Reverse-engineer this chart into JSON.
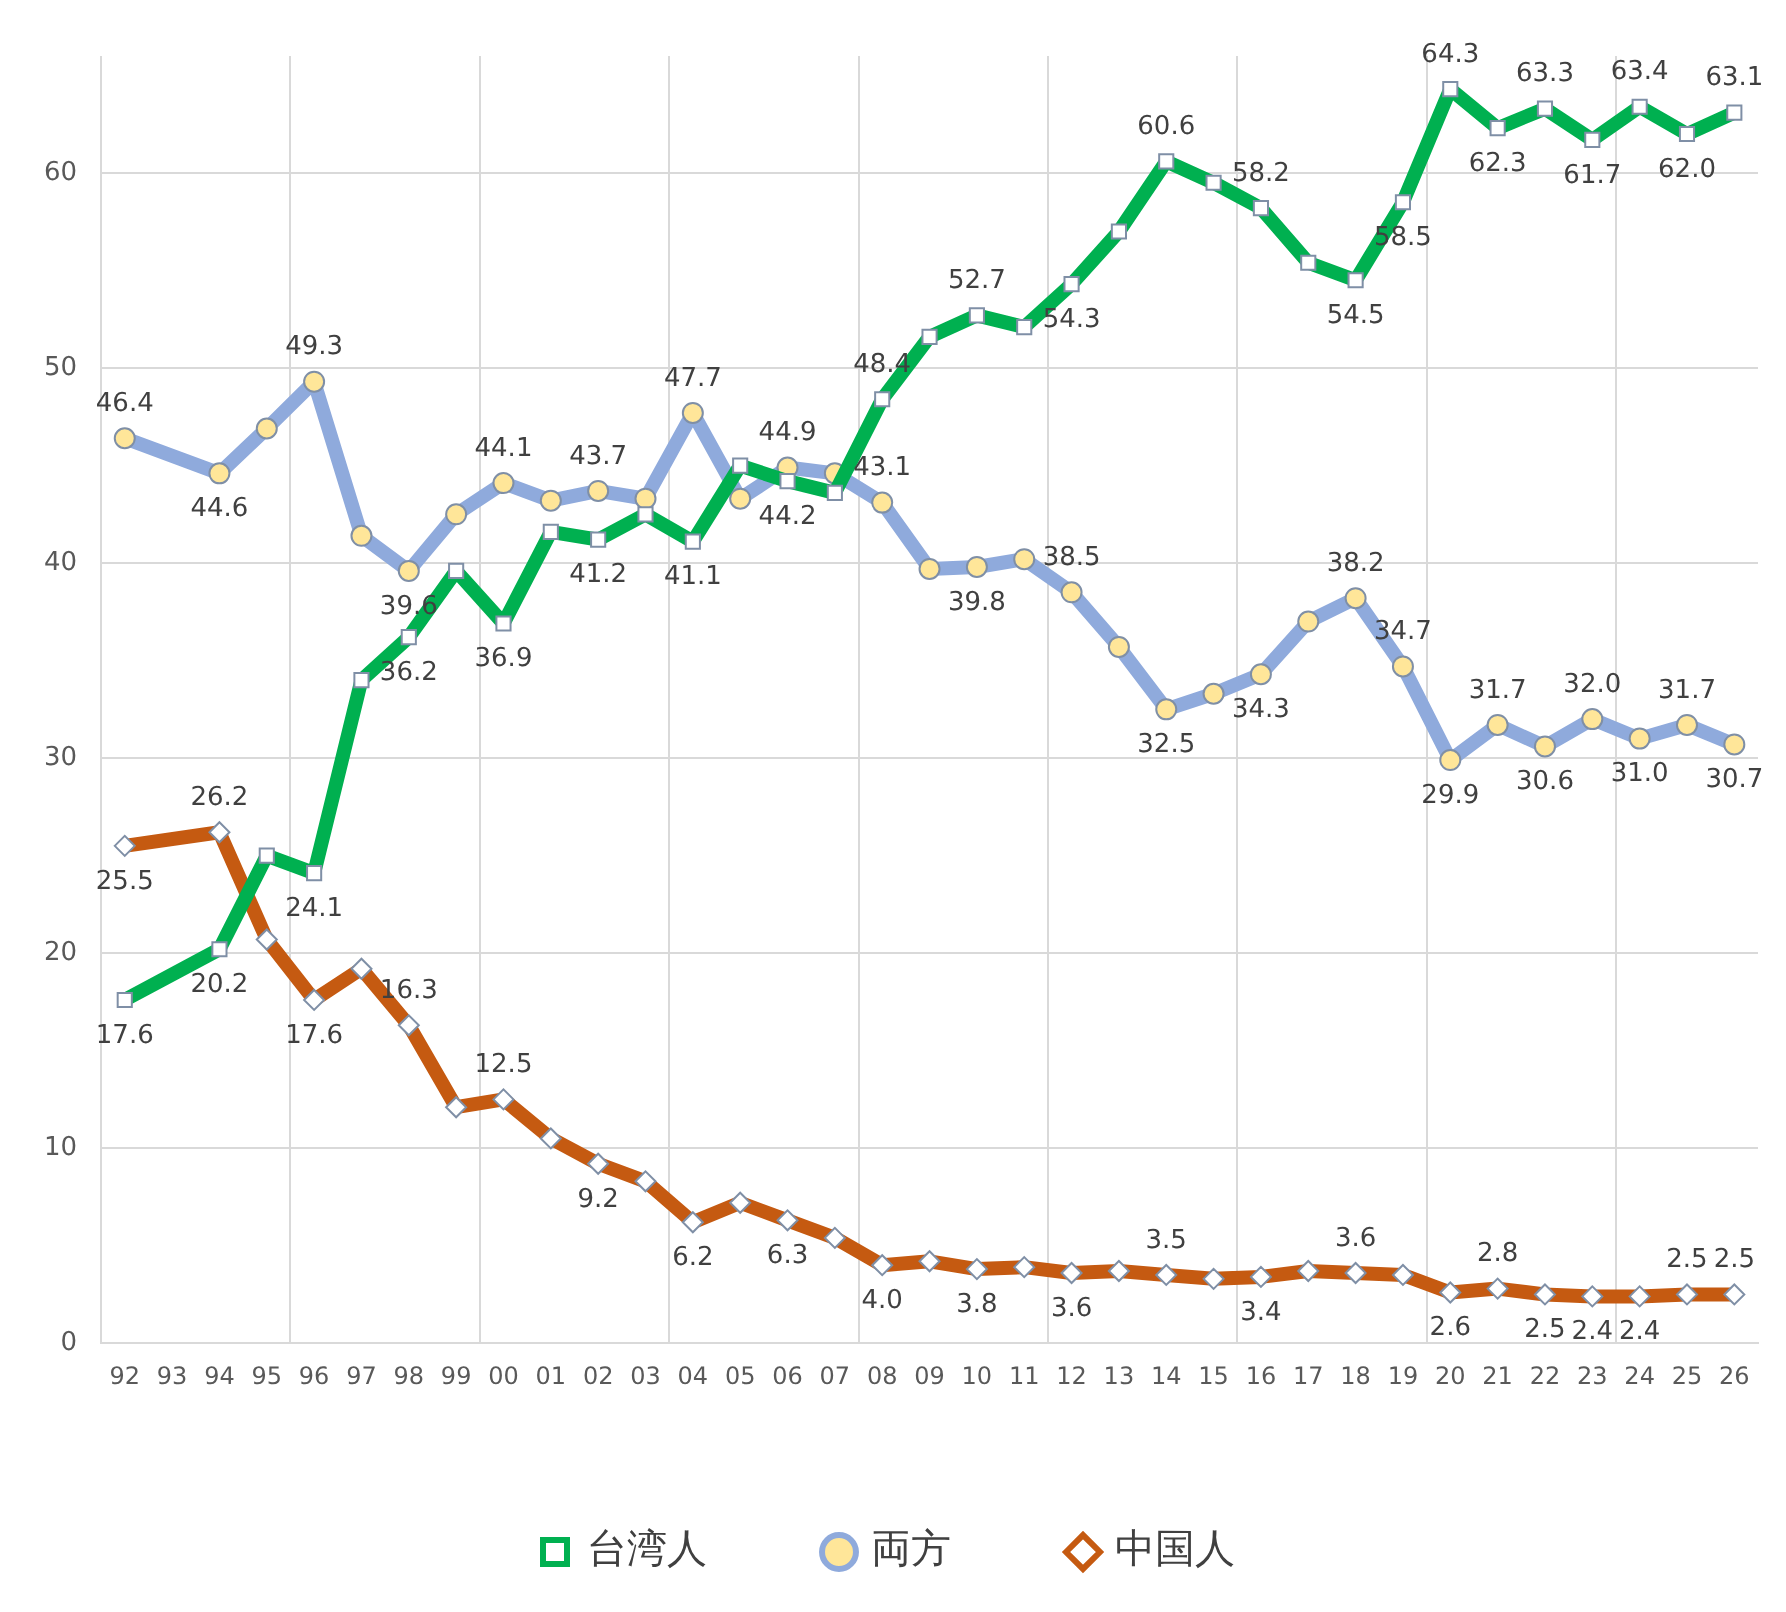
{
  "chart_data": {
    "type": "line",
    "categories": [
      "92",
      "93",
      "94",
      "95",
      "96",
      "97",
      "98",
      "99",
      "00",
      "01",
      "02",
      "03",
      "04",
      "05",
      "06",
      "07",
      "08",
      "09",
      "10",
      "11",
      "12",
      "13",
      "14",
      "15",
      "16",
      "17",
      "18",
      "19",
      "20",
      "21",
      "22",
      "23",
      "24",
      "25",
      "26"
    ],
    "series": [
      {
        "name": "台湾人",
        "color": "#00b050",
        "marker": "square",
        "values": [
          17.6,
          null,
          20.2,
          25.0,
          24.1,
          34.0,
          36.2,
          39.6,
          36.9,
          41.6,
          41.2,
          42.5,
          41.1,
          45.0,
          44.2,
          43.6,
          48.4,
          51.6,
          52.7,
          52.1,
          54.3,
          57.0,
          60.6,
          59.5,
          58.2,
          55.4,
          54.5,
          58.5,
          64.3,
          62.3,
          63.3,
          61.7,
          63.4,
          62.0,
          63.1
        ],
        "value_labels": [
          "17.6",
          null,
          "20.2",
          null,
          "24.1",
          null,
          "36.2",
          null,
          "36.9",
          null,
          "41.2",
          null,
          "41.1",
          null,
          "44.2",
          null,
          "48.4",
          null,
          "52.7",
          null,
          "54.3",
          null,
          "60.6",
          null,
          "58.2",
          null,
          "54.5",
          "58.5",
          "64.3",
          "62.3",
          "63.3",
          "61.7",
          "63.4",
          "62.0",
          "63.1"
        ]
      },
      {
        "name": "両方",
        "color": "#8faadc",
        "marker": "circle",
        "values": [
          46.4,
          null,
          44.6,
          46.9,
          49.3,
          41.4,
          39.6,
          42.5,
          44.1,
          43.2,
          43.7,
          43.3,
          47.7,
          43.3,
          44.9,
          44.6,
          43.1,
          39.7,
          39.8,
          40.2,
          38.5,
          35.7,
          32.5,
          33.3,
          34.3,
          37.0,
          38.2,
          34.7,
          29.9,
          31.7,
          30.6,
          32.0,
          31.0,
          31.7,
          30.7
        ],
        "value_labels": [
          "46.4",
          null,
          "44.6",
          null,
          "49.3",
          null,
          "39.6",
          null,
          "44.1",
          null,
          "43.7",
          null,
          "47.7",
          null,
          "44.9",
          null,
          "43.1",
          null,
          "39.8",
          null,
          "38.5",
          null,
          "32.5",
          null,
          "34.3",
          null,
          "38.2",
          "34.7",
          "29.9",
          "31.7",
          "30.6",
          "32.0",
          "31.0",
          "31.7",
          "30.7"
        ]
      },
      {
        "name": "中国人",
        "color": "#c55a11",
        "marker": "diamond",
        "values": [
          25.5,
          null,
          26.2,
          20.7,
          17.6,
          19.2,
          16.3,
          12.1,
          12.5,
          10.5,
          9.2,
          8.3,
          6.2,
          7.2,
          6.3,
          5.4,
          4.0,
          4.2,
          3.8,
          3.9,
          3.6,
          3.7,
          3.5,
          3.3,
          3.4,
          3.7,
          3.6,
          3.5,
          2.6,
          2.8,
          2.5,
          2.4,
          2.4,
          2.5,
          2.5
        ],
        "value_labels": [
          "25.5",
          null,
          "26.2",
          null,
          "17.6",
          null,
          "16.3",
          null,
          "12.5",
          null,
          "9.2",
          null,
          "6.2",
          null,
          "6.3",
          null,
          "4.0",
          null,
          "3.8",
          null,
          "3.6",
          null,
          "3.5",
          null,
          "3.4",
          null,
          "3.6",
          null,
          "2.6",
          "2.8",
          "2.5",
          "2.4",
          "2.4",
          "2.5",
          "2.5"
        ]
      }
    ],
    "ylim": [
      0,
      66
    ],
    "yticks": [
      0,
      10,
      20,
      30,
      40,
      50,
      60
    ],
    "grid": true,
    "legend": "bottom"
  }
}
